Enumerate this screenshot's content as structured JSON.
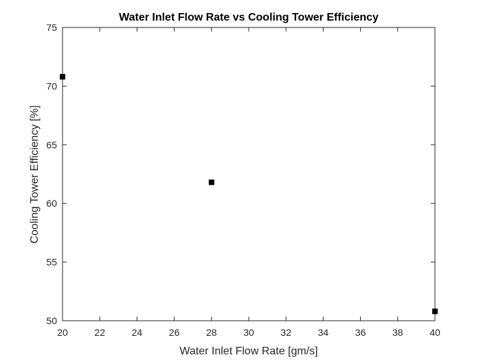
{
  "chart_data": {
    "type": "scatter",
    "title": "Water Inlet Flow Rate vs Cooling Tower Efficiency",
    "xlabel": "Water Inlet Flow Rate [gm/s]",
    "ylabel": "Cooling Tower Efficiency [%]",
    "xlim": [
      20,
      40
    ],
    "ylim": [
      50,
      75
    ],
    "xticks": [
      20,
      22,
      24,
      26,
      28,
      30,
      32,
      34,
      36,
      38,
      40
    ],
    "yticks": [
      50,
      55,
      60,
      65,
      70,
      75
    ],
    "grid": false,
    "marker": "square",
    "marker_color": "#000000",
    "axis_color": "#262626",
    "series": [
      {
        "x": [
          20,
          28,
          40
        ],
        "y": [
          70.8,
          61.8,
          50.8
        ]
      }
    ]
  }
}
